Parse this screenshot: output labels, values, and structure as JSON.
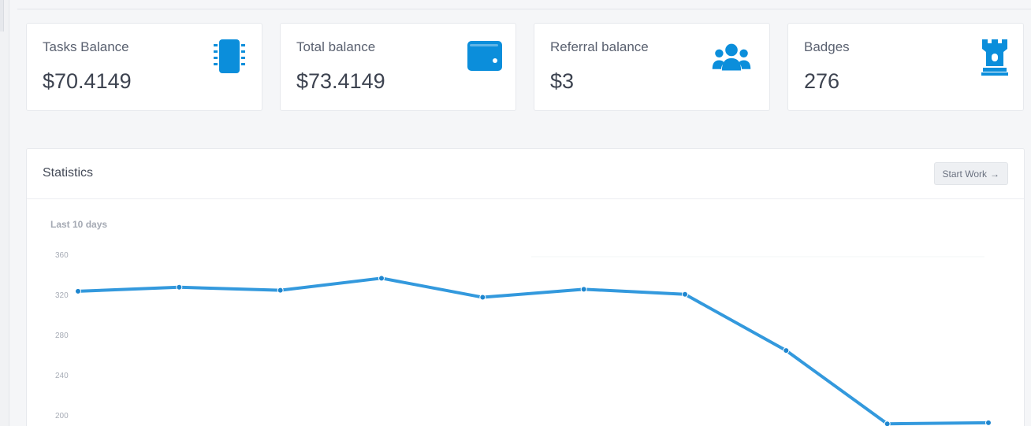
{
  "cards": [
    {
      "label": "Tasks Balance",
      "value": "$70.4149",
      "icon": "chip-icon"
    },
    {
      "label": "Total balance",
      "value": "$73.4149",
      "icon": "wallet-icon"
    },
    {
      "label": "Referral balance",
      "value": "$3",
      "icon": "users-icon"
    },
    {
      "label": "Badges",
      "value": "276",
      "icon": "rook-icon"
    }
  ],
  "colors": {
    "accent": "#0b8edb",
    "line": "#3399dd"
  },
  "statistics": {
    "title": "Statistics",
    "start_work_label": "Start Work",
    "start_work_icon": "arrow-right-icon",
    "subtitle": "Last 10 days"
  },
  "chart_data": {
    "type": "line",
    "title": "",
    "xlabel": "",
    "ylabel": "",
    "x": [
      1,
      2,
      3,
      4,
      5,
      6,
      7,
      8,
      9,
      10
    ],
    "series": [
      {
        "values": [
          324,
          328,
          325,
          337,
          318,
          326,
          321,
          265,
          192,
          193
        ]
      }
    ],
    "yticks": [
      200,
      240,
      280,
      320,
      360
    ],
    "grid": false,
    "legend": "none"
  }
}
